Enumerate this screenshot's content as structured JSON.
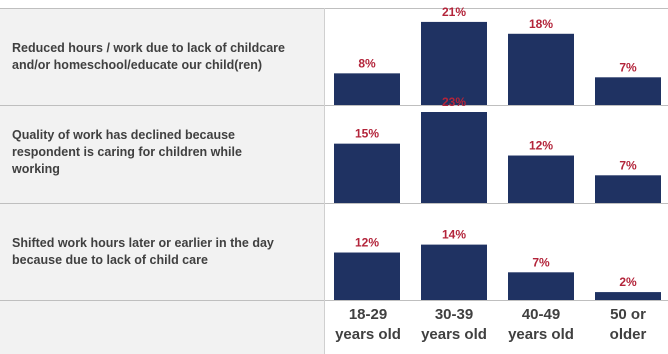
{
  "chart_data": {
    "type": "bar",
    "categories": [
      "18-29 years old",
      "30-39 years old",
      "40-49 years old",
      "50 or older"
    ],
    "category_lines": [
      [
        "18-29",
        "years old"
      ],
      [
        "30-39",
        "years old"
      ],
      [
        "40-49",
        "years old"
      ],
      [
        "50 or",
        "older"
      ]
    ],
    "series": [
      {
        "name": "Reduced hours / work due to lack of childcare and/or homeschool/educate our child(ren)",
        "lines": [
          "Reduced hours / work due to lack of childcare",
          "and/or homeschool/educate our child(ren)"
        ],
        "values": [
          8,
          21,
          18,
          7
        ]
      },
      {
        "name": "Quality of work has declined because respondent is caring for children while working",
        "lines": [
          "Quality of work has declined because",
          "respondent is caring for children while",
          "working"
        ],
        "values": [
          15,
          23,
          12,
          7
        ]
      },
      {
        "name": "Shifted work hours later or earlier in the day because due to lack of child care",
        "lines": [
          "Shifted work hours later or earlier in the day",
          "because due to lack of child care"
        ],
        "values": [
          12,
          14,
          7,
          2
        ]
      }
    ],
    "value_suffix": "%",
    "ylim": [
      0,
      23
    ],
    "bar_color": "#1f3262",
    "label_color": "#b3243a",
    "grid": false
  }
}
